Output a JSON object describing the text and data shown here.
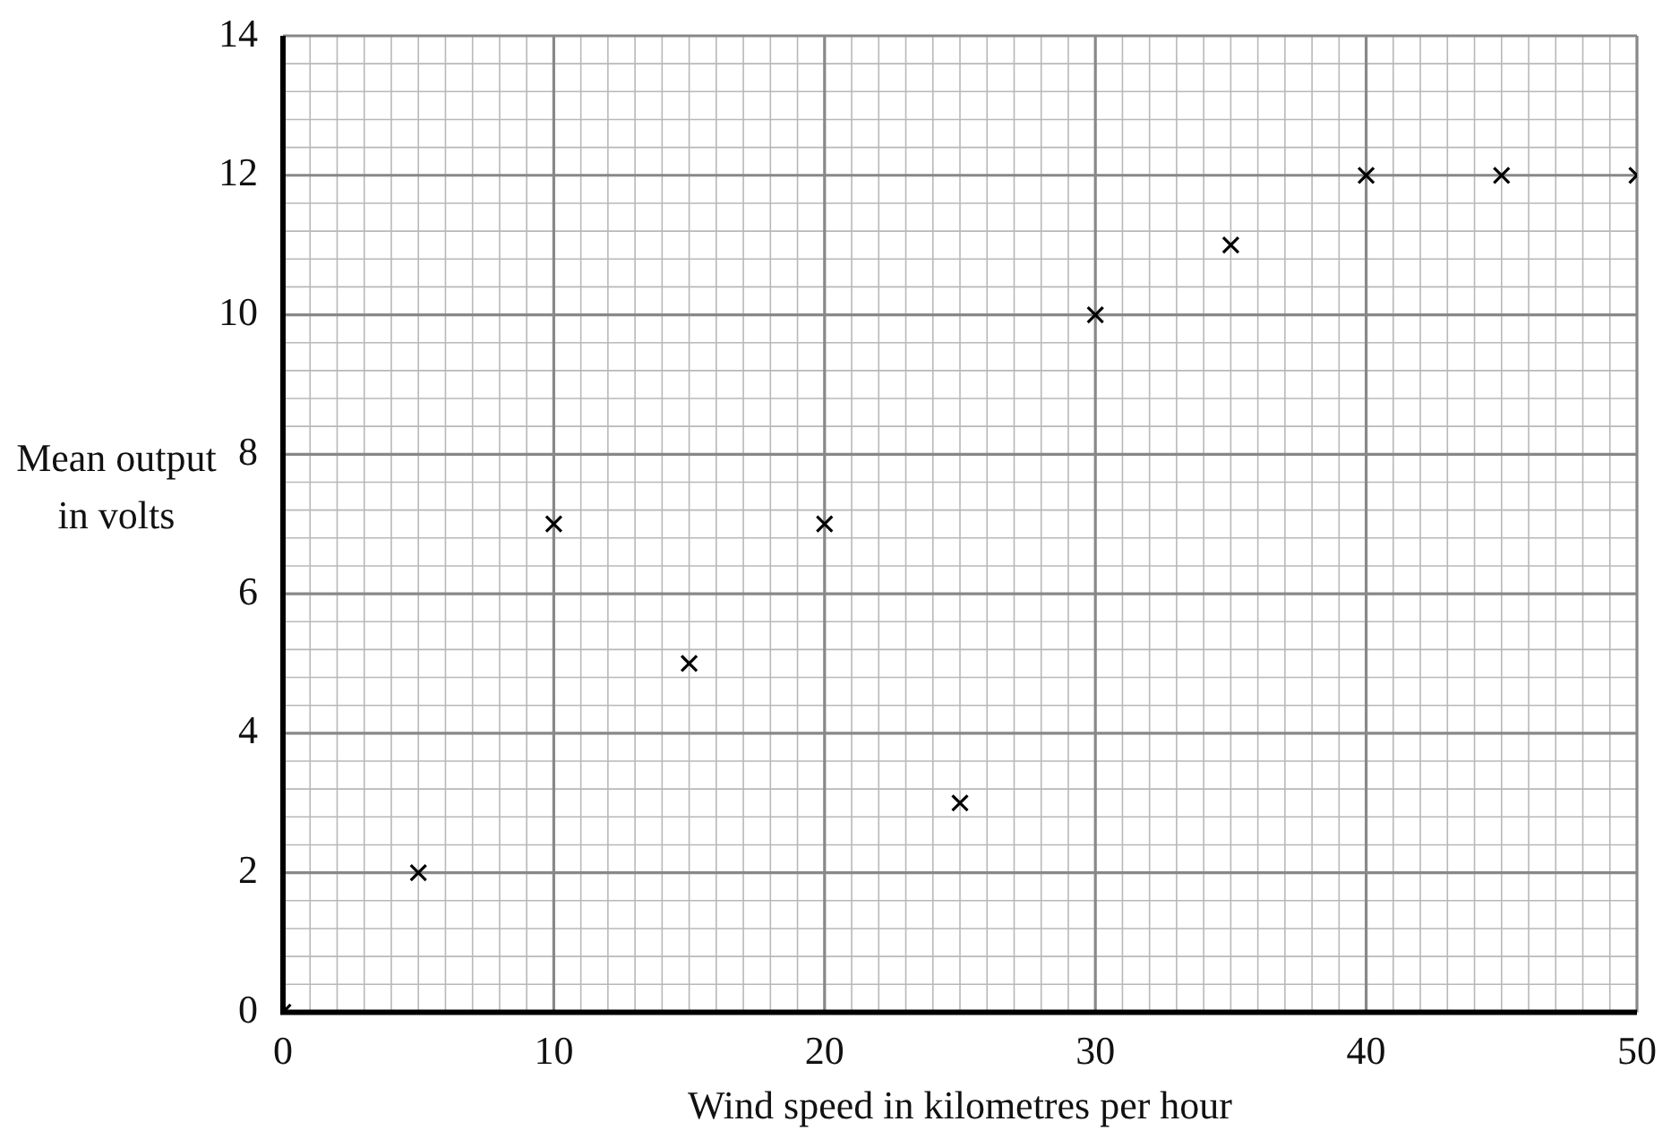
{
  "chart_data": {
    "type": "scatter",
    "xlabel": "Wind speed in kilometres per hour",
    "ylabel": "Mean output in volts",
    "x": [
      0,
      5,
      10,
      15,
      20,
      25,
      30,
      35,
      40,
      45,
      50
    ],
    "values": [
      0,
      2,
      7,
      5,
      7,
      3,
      10,
      11,
      12,
      12,
      12
    ],
    "color": "#000000",
    "marker": "cross",
    "xlim": [
      0,
      50
    ],
    "xticks": [
      0,
      10,
      20,
      30,
      40,
      50
    ],
    "ylim": [
      0,
      14
    ],
    "yticks": [
      0,
      2,
      4,
      6,
      8,
      10,
      12,
      14
    ],
    "grid": true,
    "legend": false
  }
}
